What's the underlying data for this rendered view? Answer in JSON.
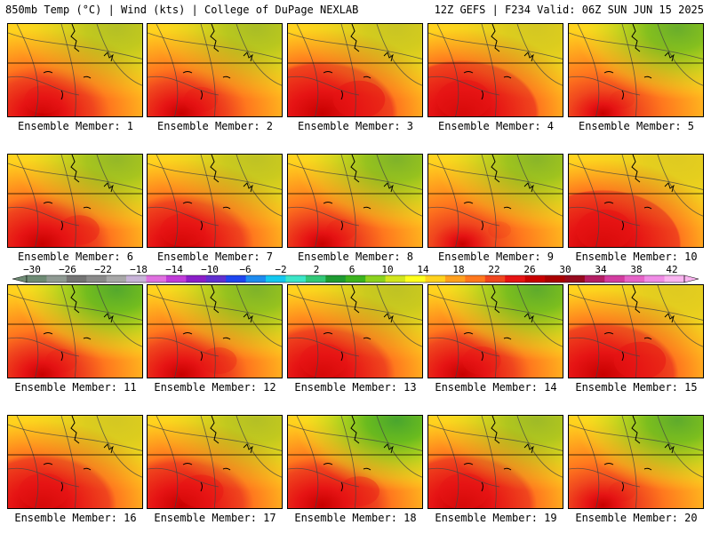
{
  "header": {
    "title_left": "850mb Temp (°C) | Wind (kts) | College of DuPage NEXLAB",
    "title_right": "12Z GEFS | F234 Valid: 06Z SUN JUN 15 2025"
  },
  "caption_prefix": "Ensemble Member: ",
  "members": [
    {
      "label": "Ensemble Member: 1",
      "hot": 0.55,
      "cool": 0.35
    },
    {
      "label": "Ensemble Member: 2",
      "hot": 0.45,
      "cool": 0.4
    },
    {
      "label": "Ensemble Member: 3",
      "hot": 0.85,
      "cool": 0.25
    },
    {
      "label": "Ensemble Member: 4",
      "hot": 0.9,
      "cool": 0.2
    },
    {
      "label": "Ensemble Member: 5",
      "hot": 0.25,
      "cool": 0.7
    },
    {
      "label": "Ensemble Member: 6",
      "hot": 0.6,
      "cool": 0.5
    },
    {
      "label": "Ensemble Member: 7",
      "hot": 0.7,
      "cool": 0.3
    },
    {
      "label": "Ensemble Member: 8",
      "hot": 0.35,
      "cool": 0.6
    },
    {
      "label": "Ensemble Member: 9",
      "hot": 0.2,
      "cool": 0.55
    },
    {
      "label": "Ensemble Member: 10",
      "hot": 0.95,
      "cool": 0.15
    },
    {
      "label": "Ensemble Member: 11",
      "hot": 0.4,
      "cool": 0.8
    },
    {
      "label": "Ensemble Member: 12",
      "hot": 0.5,
      "cool": 0.6
    },
    {
      "label": "Ensemble Member: 13",
      "hot": 0.75,
      "cool": 0.3
    },
    {
      "label": "Ensemble Member: 14",
      "hot": 0.55,
      "cool": 0.75
    },
    {
      "label": "Ensemble Member: 15",
      "hot": 0.85,
      "cool": 0.15
    },
    {
      "label": "Ensemble Member: 16",
      "hot": 0.8,
      "cool": 0.2
    },
    {
      "label": "Ensemble Member: 17",
      "hot": 0.7,
      "cool": 0.35
    },
    {
      "label": "Ensemble Member: 18",
      "hot": 0.6,
      "cool": 0.85
    },
    {
      "label": "Ensemble Member: 19",
      "hot": 0.8,
      "cool": 0.45
    },
    {
      "label": "Ensemble Member: 20",
      "hot": 0.3,
      "cool": 0.75
    }
  ],
  "colorbar": {
    "tick_labels": [
      "−30",
      "−26",
      "−22",
      "−18",
      "−14",
      "−10",
      "−6",
      "−2",
      "2",
      "6",
      "10",
      "14",
      "18",
      "22",
      "26",
      "30",
      "34",
      "38",
      "42"
    ],
    "colors": [
      "#6e8b74",
      "#8f9a93",
      "#747474",
      "#8a8a8a",
      "#a8a8a8",
      "#c8b4d8",
      "#e070e0",
      "#c03cd8",
      "#8a1ec8",
      "#6030d0",
      "#1e46f0",
      "#1e8cf0",
      "#14c8f0",
      "#3ce6c8",
      "#32c878",
      "#1e9b32",
      "#3cb41e",
      "#8cd21e",
      "#d2e61e",
      "#ffff1e",
      "#ffd21e",
      "#ffa01e",
      "#ff781e",
      "#f0461e",
      "#e61414",
      "#c80000",
      "#aa0000",
      "#960a1e",
      "#b41e64",
      "#d23ca0",
      "#e664c8",
      "#f08ce6",
      "#fab4f0"
    ]
  },
  "temp_colors": {
    "cold": "#1e9b32",
    "green": "#3cb41e",
    "lime": "#8cd21e",
    "yellowgreen": "#d2e61e",
    "yellow": "#ffff1e",
    "gold": "#ffd21e",
    "orange": "#ffa01e",
    "dkorange": "#ff781e",
    "redorange": "#f0461e",
    "red": "#e61414",
    "darkred": "#c80000"
  }
}
